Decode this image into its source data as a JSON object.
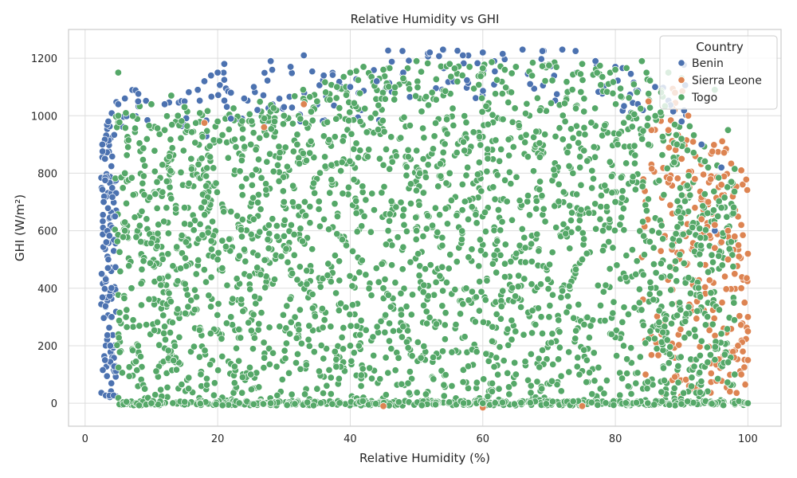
{
  "chart_data": {
    "type": "scatter",
    "title": "Relative Humidity vs GHI",
    "xlabel": "Relative Humidity (%)",
    "ylabel": "GHI (W/m²)",
    "xlim": [
      -2.5,
      105
    ],
    "ylim": [
      -80,
      1300
    ],
    "xticks": [
      0,
      20,
      40,
      60,
      80,
      100
    ],
    "yticks": [
      0,
      200,
      400,
      600,
      800,
      1000,
      1200
    ],
    "grid": true,
    "legend": {
      "title": "Country",
      "placement": "top-right"
    },
    "series": [
      {
        "name": "Benin",
        "color": "#4c72b0",
        "points": [
          [
            2.5,
            450
          ],
          [
            3,
            850
          ],
          [
            3.5,
            980
          ],
          [
            4,
            300
          ],
          [
            3,
            150
          ],
          [
            4.5,
            650
          ],
          [
            5,
            1040
          ],
          [
            6,
            1060
          ],
          [
            8,
            1050
          ],
          [
            12,
            1040
          ],
          [
            15,
            1050
          ],
          [
            17,
            1090
          ],
          [
            18,
            1120
          ],
          [
            19,
            1140
          ],
          [
            20,
            1150
          ],
          [
            21,
            1180
          ],
          [
            22,
            1080
          ],
          [
            24,
            1060
          ],
          [
            28,
            1190
          ],
          [
            31,
            1170
          ],
          [
            33,
            1210
          ],
          [
            36,
            1140
          ],
          [
            40,
            1100
          ],
          [
            44,
            1120
          ],
          [
            48,
            1150
          ],
          [
            52,
            1220
          ],
          [
            54,
            1230
          ],
          [
            57,
            1210
          ],
          [
            60,
            1220
          ],
          [
            63,
            1215
          ],
          [
            66,
            1230
          ],
          [
            69,
            1225
          ],
          [
            72,
            1230
          ],
          [
            74,
            1225
          ],
          [
            77,
            1190
          ],
          [
            80,
            1170
          ],
          [
            86,
            1100
          ],
          [
            90,
            980
          ],
          [
            93,
            900
          ],
          [
            96,
            820
          ],
          [
            95,
            600
          ],
          [
            30,
            1030
          ],
          [
            26,
            1020
          ],
          [
            22,
            990
          ],
          [
            2.8,
            700
          ],
          [
            3.2,
            560
          ],
          [
            3.8,
            200
          ],
          [
            2.6,
            900
          ]
        ]
      },
      {
        "name": "Sierra Leone",
        "color": "#dd8452",
        "points": [
          [
            18,
            975
          ],
          [
            33,
            1040
          ],
          [
            27,
            960
          ],
          [
            45,
            -10
          ],
          [
            60,
            -15
          ],
          [
            75,
            -10
          ],
          [
            85,
            1050
          ],
          [
            88,
            950
          ],
          [
            90,
            850
          ],
          [
            92,
            780
          ],
          [
            94,
            700
          ],
          [
            95,
            620
          ],
          [
            96,
            560
          ],
          [
            97,
            500
          ],
          [
            98,
            450
          ],
          [
            99,
            400
          ],
          [
            99.5,
            350
          ],
          [
            100,
            300
          ],
          [
            100,
            250
          ],
          [
            98.5,
            200
          ],
          [
            97,
            600
          ],
          [
            99,
            620
          ],
          [
            100,
            520
          ],
          [
            96,
            760
          ],
          [
            99,
            810
          ],
          [
            91,
            1000
          ],
          [
            89,
            1080
          ],
          [
            93,
            640
          ],
          [
            95,
            540
          ],
          [
            98,
            580
          ],
          [
            100,
            150
          ],
          [
            99,
            100
          ]
        ]
      },
      {
        "name": "Togo",
        "color": "#55a868",
        "points": [
          [
            5,
            1150
          ],
          [
            5,
            1000
          ],
          [
            6,
            800
          ],
          [
            6,
            600
          ],
          [
            7,
            400
          ],
          [
            8,
            200
          ],
          [
            9,
            50
          ],
          [
            10,
            0
          ],
          [
            12,
            950
          ],
          [
            14,
            1000
          ],
          [
            16,
            850
          ],
          [
            18,
            700
          ],
          [
            20,
            500
          ],
          [
            22,
            300
          ],
          [
            25,
            100
          ],
          [
            28,
            0
          ],
          [
            30,
            1000
          ],
          [
            32,
            900
          ],
          [
            35,
            1050
          ],
          [
            38,
            1100
          ],
          [
            40,
            1150
          ],
          [
            42,
            1170
          ],
          [
            45,
            1160
          ],
          [
            48,
            1130
          ],
          [
            50,
            1190
          ],
          [
            55,
            1180
          ],
          [
            58,
            1170
          ],
          [
            60,
            1165
          ],
          [
            65,
            1170
          ],
          [
            70,
            1175
          ],
          [
            75,
            1180
          ],
          [
            80,
            1160
          ],
          [
            84,
            1190
          ],
          [
            88,
            1150
          ],
          [
            90,
            1130
          ],
          [
            95,
            1090
          ],
          [
            97,
            950
          ],
          [
            98,
            815
          ],
          [
            97.5,
            770
          ],
          [
            85,
            900
          ],
          [
            80,
            700
          ],
          [
            75,
            500
          ],
          [
            70,
            300
          ],
          [
            65,
            100
          ],
          [
            60,
            0
          ],
          [
            55,
            800
          ],
          [
            50,
            600
          ],
          [
            45,
            400
          ],
          [
            40,
            200
          ],
          [
            35,
            50
          ],
          [
            30,
            700
          ],
          [
            25,
            900
          ],
          [
            20,
            980
          ],
          [
            15,
            1030
          ],
          [
            10,
            1040
          ],
          [
            13,
            1070
          ],
          [
            96,
            680
          ],
          [
            94,
            820
          ],
          [
            98,
            100
          ],
          [
            100,
            0
          ]
        ]
      }
    ]
  }
}
